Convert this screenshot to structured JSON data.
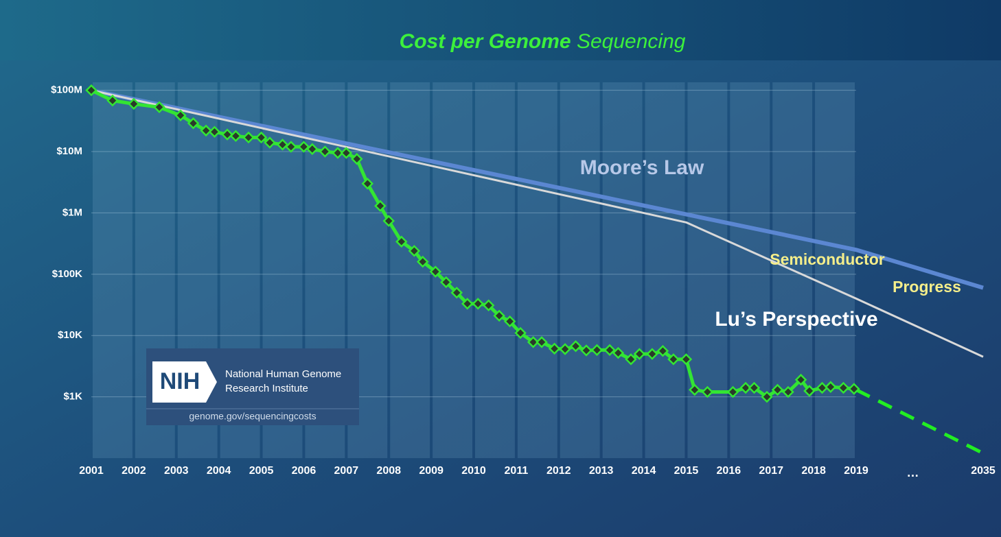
{
  "chart_data": {
    "type": "line",
    "title": [
      "Cost per Genome",
      "Sequencing"
    ],
    "log_y": true,
    "grid": true,
    "ylim": [
      100,
      135000000
    ],
    "yticks": [
      {
        "value": 100000000,
        "label": "$100M"
      },
      {
        "value": 10000000,
        "label": "$10M"
      },
      {
        "value": 1000000,
        "label": "$1M"
      },
      {
        "value": 100000,
        "label": "$100K"
      },
      {
        "value": 10000,
        "label": "$10K"
      },
      {
        "value": 1000,
        "label": "$1K"
      }
    ],
    "xlim": [
      2001,
      2035
    ],
    "x_break": 2019,
    "break_label": "…",
    "xticks": [
      2001,
      2002,
      2003,
      2004,
      2005,
      2006,
      2007,
      2008,
      2009,
      2010,
      2011,
      2012,
      2013,
      2014,
      2015,
      2016,
      2017,
      2018,
      2019,
      2035
    ],
    "series": [
      {
        "name": "Moore’s Law",
        "color": "#5b87d2",
        "width": 6,
        "x": [
          2001,
          2019,
          2035
        ],
        "values": [
          100000000,
          250000,
          60000
        ]
      },
      {
        "name": "Lu’s Perspective",
        "color": "#d9d9d9",
        "width": 3,
        "x": [
          2001,
          2015,
          2019,
          2035
        ],
        "values": [
          100000000,
          700000,
          40000,
          4500
        ]
      },
      {
        "color": "#33e533",
        "width": 5,
        "marker": "diamond",
        "x": [
          2001.0,
          2001.5,
          2002.0,
          2002.6,
          2003.1,
          2003.4,
          2003.7,
          2003.9,
          2004.2,
          2004.4,
          2004.7,
          2005.0,
          2005.2,
          2005.5,
          2005.7,
          2006.0,
          2006.2,
          2006.5,
          2006.8,
          2007.0,
          2007.25,
          2007.5,
          2007.8,
          2008.0,
          2008.3,
          2008.6,
          2008.8,
          2009.1,
          2009.35,
          2009.6,
          2009.85,
          2010.1,
          2010.35,
          2010.6,
          2010.85,
          2011.1,
          2011.4,
          2011.6,
          2011.9,
          2012.15,
          2012.4,
          2012.65,
          2012.9,
          2013.2,
          2013.4,
          2013.7,
          2013.9,
          2014.2,
          2014.45,
          2014.7,
          2015.0,
          2015.2,
          2015.5,
          2016.1,
          2016.4,
          2016.6,
          2016.9,
          2017.15,
          2017.4,
          2017.7,
          2017.9,
          2018.2,
          2018.4,
          2018.7,
          2018.95
        ],
        "values": [
          100000000,
          68000000,
          60000000,
          53000000,
          39000000,
          29000000,
          22000000,
          21000000,
          19000000,
          18000000,
          17000000,
          17000000,
          14000000,
          13000000,
          12000000,
          12000000,
          11000000,
          10000000,
          9500000,
          9500000,
          7600000,
          3000000,
          1300000,
          740000,
          340000,
          240000,
          160000,
          110000,
          74000,
          50000,
          33000,
          33000,
          31000,
          21000,
          17000,
          11000,
          7800,
          7800,
          6100,
          6000,
          6700,
          5700,
          5800,
          5800,
          5200,
          4100,
          5000,
          5000,
          5600,
          4100,
          4100,
          1300,
          1200,
          1200,
          1400,
          1400,
          1000,
          1300,
          1200,
          1900,
          1250,
          1400,
          1450,
          1400,
          1350
        ]
      },
      {
        "color": "#22ee22",
        "width": 5,
        "dash": true,
        "x": [
          2019,
          2035
        ],
        "values": [
          1300,
          120
        ]
      }
    ],
    "annotations": [
      "Semiconductor",
      "Progress"
    ],
    "logo": {
      "mark": "NIH",
      "lines": [
        "National Human Genome",
        "Research Institute"
      ],
      "url": "genome.gov/sequencingcosts"
    }
  }
}
